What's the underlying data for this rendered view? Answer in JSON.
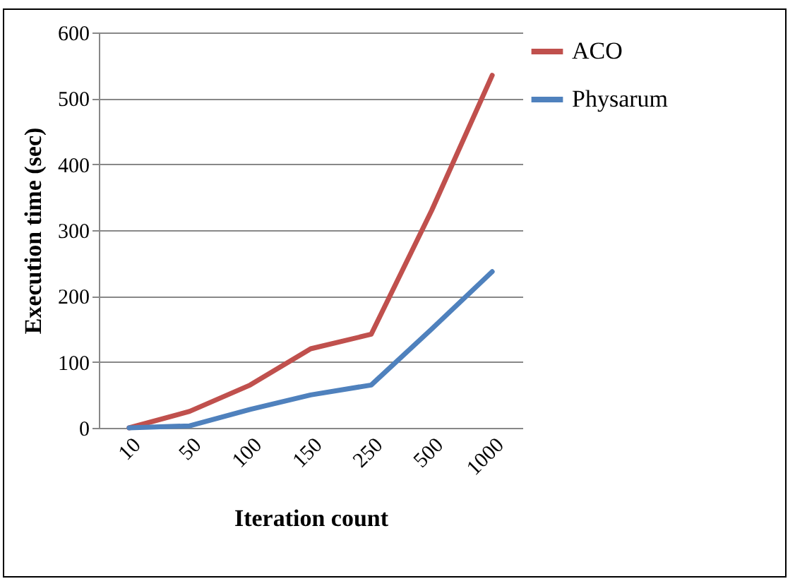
{
  "chart_data": {
    "type": "line",
    "xlabel": "Iteration count",
    "ylabel": "Execution time (sec)",
    "categories": [
      "10",
      "50",
      "100",
      "150",
      "250",
      "500",
      "1000"
    ],
    "series": [
      {
        "name": "ACO",
        "color": "#c0504d",
        "values": [
          0,
          25,
          65,
          120,
          142,
          330,
          535
        ]
      },
      {
        "name": "Physarum",
        "color": "#4f81bd",
        "values": [
          0,
          3,
          28,
          50,
          65,
          150,
          237
        ]
      }
    ],
    "ylim": [
      0,
      600
    ],
    "yticks": [
      0,
      100,
      200,
      300,
      400,
      500,
      600
    ],
    "grid": "y",
    "legend": "right",
    "marker": "none",
    "line_style": "solid"
  }
}
